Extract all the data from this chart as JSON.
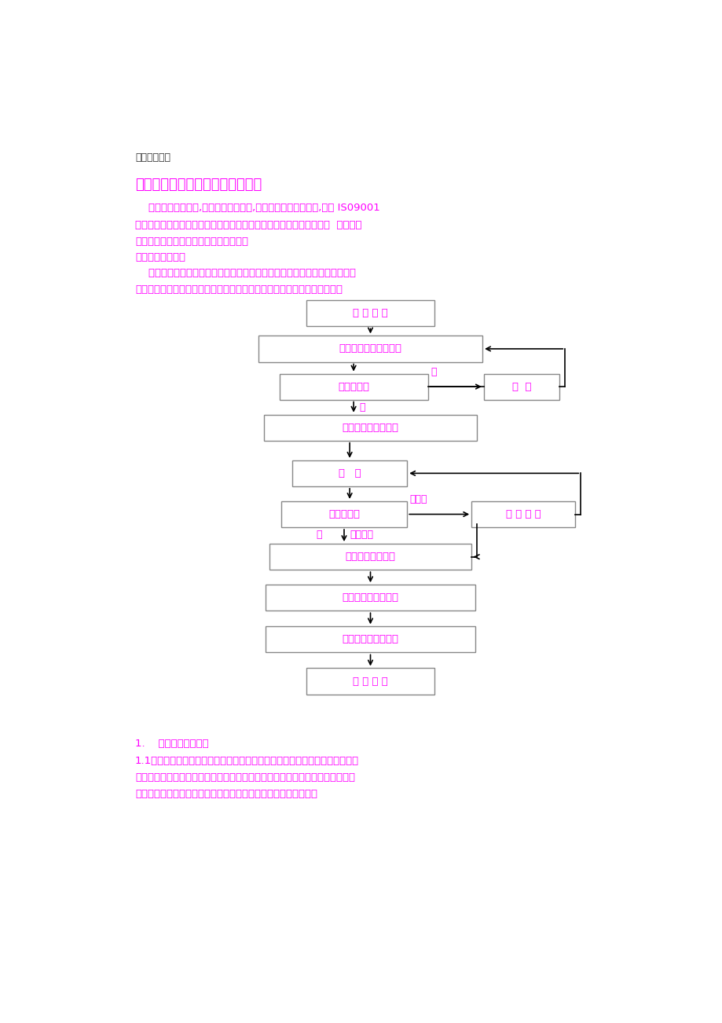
{
  "bg_color": "#ffffff",
  "text_color": "#ff00ff",
  "dark_text_color": "#333333",
  "header_text": "云南省禄丰县",
  "title": "材料进货渠道、材料质量保证措施",
  "para1_line1": "    为了保证工程质量,我方对材料的采购,在贯彻甲方要求的同时,根据 IS09001",
  "para1_line2": "质量体系及贯标要求，逐一对每一种工程材料供货厂家的材料质量、信  誉、供货",
  "para1_line3": "能力进行评估，以确保采购材料的质量。",
  "section_label": "材料采购工作流程",
  "para2_line1": "    材料采购工作的重点，一要保证所采购的材料质量符合要求，二要保证所采",
  "para2_line2": "购的材料价格合理，要做到这样二点，必须严格执行如下采购工作的流程。",
  "bottom_section1": "1.    材料供应管理制度",
  "bottom_para1": "1.1掌握材料信息，优选供货厂家，掌握材料质量、价格、供货能力的信息。可",
  "bottom_para2": "以获得质量好、价格低的材料资源，从而确保工程质量，降低工程造价。这是企",
  "bottom_para3": "业获得良好社会效益、经济效益，提高市场竞争能力的重要因素。"
}
